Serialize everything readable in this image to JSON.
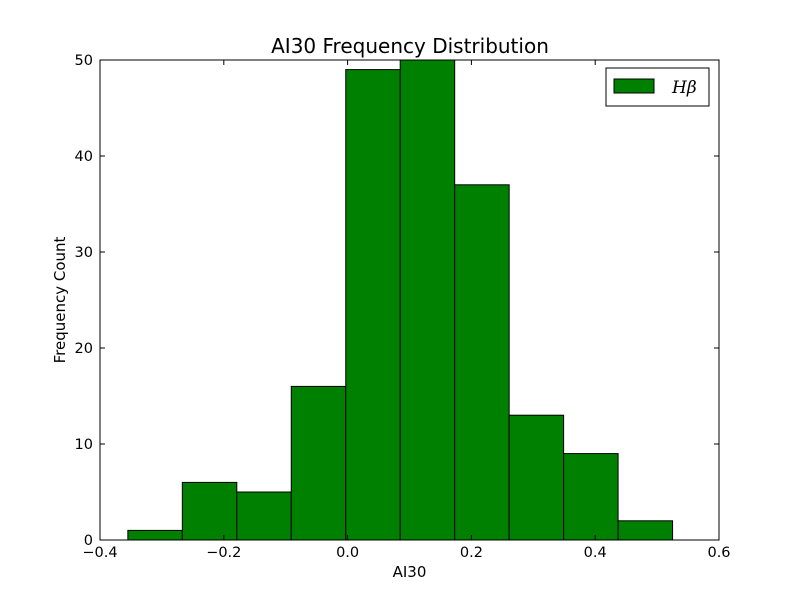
{
  "chart_data": {
    "type": "bar",
    "title": "AI30 Frequency Distribution",
    "xlabel": "AI30",
    "ylabel": "Frequency Count",
    "xlim": [
      -0.4,
      0.6
    ],
    "ylim": [
      0,
      50
    ],
    "xticks": [
      -0.4,
      -0.2,
      0.0,
      0.2,
      0.4,
      0.6
    ],
    "xtick_labels": [
      "−0.4",
      "−0.2",
      "0.0",
      "0.2",
      "0.4",
      "0.6"
    ],
    "yticks": [
      0,
      10,
      20,
      30,
      40,
      50
    ],
    "ytick_labels": [
      "0",
      "10",
      "20",
      "30",
      "40",
      "50"
    ],
    "bin_edges": [
      -0.355,
      -0.267,
      -0.179,
      -0.091,
      -0.003,
      0.085,
      0.173,
      0.261,
      0.349,
      0.437,
      0.525
    ],
    "series": [
      {
        "name": "Hβ",
        "color": "#008000",
        "values": [
          1,
          6,
          5,
          16,
          49,
          50,
          37,
          13,
          9,
          2
        ]
      }
    ],
    "grid": false,
    "legend_position": "top-right"
  }
}
